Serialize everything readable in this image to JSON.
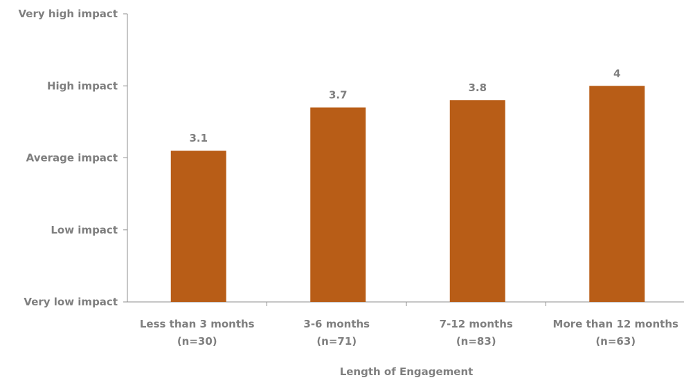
{
  "chart_data": {
    "type": "bar",
    "categories": [
      [
        "Less than 3 months",
        "(n=30)"
      ],
      [
        "3-6 months",
        "(n=71)"
      ],
      [
        "7-12 months",
        "(n=83)"
      ],
      [
        "More than 12 months",
        "(n=63)"
      ]
    ],
    "values": [
      3.1,
      3.7,
      3.8,
      4
    ],
    "data_labels": [
      "3.1",
      "3.7",
      "3.8",
      "4"
    ],
    "ylim": [
      1,
      5
    ],
    "y_tick_values": [
      1,
      2,
      3,
      4,
      5
    ],
    "y_tick_labels": [
      "Very low impact",
      "Low impact",
      "Average impact",
      "High impact",
      "Very high impact"
    ],
    "xlabel": "Length of Engagement",
    "bar_color": "#b85d17",
    "text_color": "#7f7f7f",
    "axis_color": "#8c8c8c",
    "grid": false,
    "legend": "none"
  }
}
